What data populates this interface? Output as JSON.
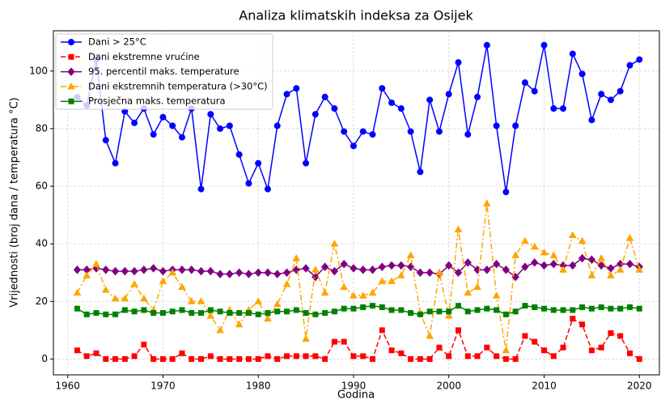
{
  "chart_data": {
    "type": "line",
    "title": "Analiza klimatskih indeksa za Osijek",
    "xlabel": "Godina",
    "ylabel": "Vrijednosti (broj dana / temperatura °C)",
    "x": [
      1961,
      1962,
      1963,
      1964,
      1965,
      1966,
      1967,
      1968,
      1969,
      1970,
      1971,
      1972,
      1973,
      1974,
      1975,
      1976,
      1977,
      1978,
      1979,
      1980,
      1981,
      1982,
      1983,
      1984,
      1985,
      1986,
      1987,
      1988,
      1989,
      1990,
      1991,
      1992,
      1993,
      1994,
      1995,
      1996,
      1997,
      1998,
      1999,
      2000,
      2001,
      2002,
      2003,
      2004,
      2005,
      2006,
      2007,
      2008,
      2009,
      2010,
      2011,
      2012,
      2013,
      2014,
      2015,
      2016,
      2017,
      2018,
      2019,
      2020
    ],
    "series": [
      {
        "name": "Dani > 25°C",
        "color": "#0000ff",
        "marker": "circle",
        "linestyle": "solid",
        "values": [
          91,
          88,
          104,
          76,
          68,
          86,
          82,
          87,
          78,
          84,
          81,
          77,
          87,
          59,
          85,
          80,
          81,
          71,
          61,
          68,
          59,
          81,
          92,
          94,
          68,
          85,
          91,
          87,
          79,
          74,
          79,
          78,
          94,
          89,
          87,
          79,
          65,
          90,
          79,
          92,
          103,
          78,
          91,
          109,
          81,
          58,
          81,
          96,
          93,
          109,
          87,
          87,
          106,
          99,
          83,
          92,
          90,
          93,
          102,
          104
        ]
      },
      {
        "name": "Dani ekstremne vrućine",
        "color": "#ff0000",
        "marker": "square",
        "linestyle": "dashed",
        "values": [
          3,
          1,
          2,
          0,
          0,
          0,
          1,
          5,
          0,
          0,
          0,
          2,
          0,
          0,
          1,
          0,
          0,
          0,
          0,
          0,
          1,
          0,
          1,
          1,
          1,
          1,
          0,
          6,
          6,
          1,
          1,
          0,
          10,
          3,
          2,
          0,
          0,
          0,
          4,
          1,
          10,
          1,
          1,
          4,
          1,
          0,
          0,
          8,
          6,
          3,
          1,
          4,
          14,
          12,
          3,
          4,
          9,
          8,
          2,
          0
        ]
      },
      {
        "name": "95. percentil maks. temperature",
        "color": "#800080",
        "marker": "diamond",
        "linestyle": "solid",
        "values": [
          31,
          31,
          31.5,
          31,
          30.5,
          30.5,
          30.5,
          31,
          31.5,
          30.5,
          31,
          31,
          31,
          30.5,
          30.5,
          29.5,
          29.5,
          30,
          29.5,
          30,
          30,
          29.5,
          30,
          31,
          31.5,
          28.5,
          32,
          30.5,
          33,
          31.5,
          31,
          31,
          32,
          32.5,
          32.5,
          32,
          30,
          30,
          29.5,
          32.5,
          30,
          33.5,
          31,
          31,
          33,
          31,
          28.5,
          32,
          33.5,
          32.5,
          33,
          32.5,
          32.5,
          35,
          34.5,
          32.5,
          31.5,
          33,
          33,
          32
        ]
      },
      {
        "name": "Dani ekstremnih temperatura (>30°C)",
        "color": "#ffa500",
        "marker": "triangle",
        "linestyle": "dashdot",
        "values": [
          23,
          29,
          33,
          24,
          21,
          21,
          26,
          21,
          17,
          27,
          30,
          25,
          20,
          20,
          15,
          10,
          17,
          12,
          17,
          20,
          14,
          19,
          26,
          35,
          7,
          31,
          23,
          40,
          25,
          22,
          22,
          23,
          27,
          27,
          29,
          36,
          16,
          8,
          30,
          15,
          45,
          23,
          25,
          54,
          22,
          3,
          36,
          41,
          39,
          37,
          36,
          31,
          43,
          41,
          29,
          35,
          29,
          31,
          42,
          31
        ]
      },
      {
        "name": "Prosječna maks. temperatura",
        "color": "#008000",
        "marker": "square",
        "linestyle": "solid",
        "values": [
          17.5,
          15.5,
          16,
          15.5,
          15.5,
          17,
          16.5,
          17,
          16,
          16,
          16.5,
          17,
          16,
          16,
          17,
          16.5,
          16,
          16,
          16,
          15.5,
          16,
          16.5,
          16.5,
          17,
          16,
          15.5,
          16,
          16.5,
          17.5,
          17.5,
          18,
          18.5,
          18,
          17,
          17,
          16,
          15.5,
          16.5,
          16.5,
          16.5,
          18.5,
          16.5,
          17,
          17.5,
          17,
          15.5,
          16.5,
          18.5,
          18,
          17.5,
          17,
          17,
          17,
          18,
          17.5,
          18,
          17.5,
          17.5,
          18,
          17.5
        ]
      }
    ],
    "xlim": [
      1958.5,
      2022.1
    ],
    "ylim": [
      -5.5,
      114
    ],
    "xticks": [
      1960,
      1970,
      1980,
      1990,
      2000,
      2010,
      2020
    ],
    "yticks": [
      0,
      20,
      40,
      60,
      80,
      100
    ],
    "grid": true,
    "legend": "upper left"
  }
}
